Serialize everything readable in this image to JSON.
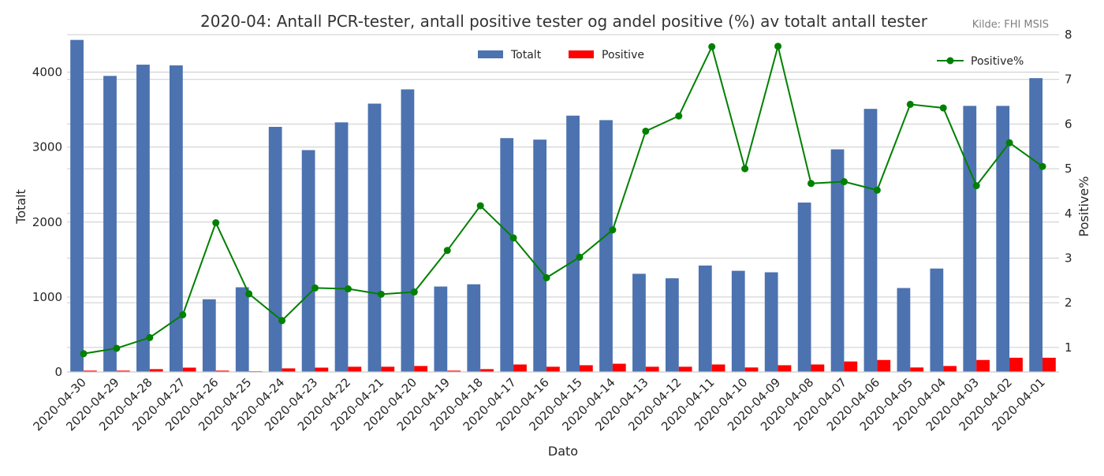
{
  "title": "2020-04: Antall PCR-tester, antall positive tester og andel positive (%) av totalt antall tester",
  "source": "Kilde: FHI MSIS",
  "colors": {
    "total": "#4C72B0",
    "positive": "#FF0000",
    "pct": "#008000",
    "grid": "#CCCCCC"
  },
  "chart_data": {
    "type": "bar",
    "title": "2020-04: Antall PCR-tester, antall positive tester og andel positive (%) av totalt antall tester",
    "xlabel": "Dato",
    "ylabel": "Totalt",
    "y2label": "Positive%",
    "ylim": [
      0,
      4500
    ],
    "y2lim": [
      0.45,
      8.0
    ],
    "yticks": [
      0,
      1000,
      2000,
      3000,
      4000
    ],
    "y2ticks": [
      1,
      2,
      3,
      4,
      5,
      6,
      7,
      8
    ],
    "grid": true,
    "legend": [
      {
        "label": "Totalt",
        "placement": "top-center"
      },
      {
        "label": "Positive",
        "placement": "top-center"
      },
      {
        "label": "Positive%",
        "placement": "top-right"
      }
    ],
    "categories": [
      "2020-04-30",
      "2020-04-29",
      "2020-04-28",
      "2020-04-27",
      "2020-04-26",
      "2020-04-25",
      "2020-04-24",
      "2020-04-23",
      "2020-04-22",
      "2020-04-21",
      "2020-04-20",
      "2020-04-19",
      "2020-04-18",
      "2020-04-17",
      "2020-04-16",
      "2020-04-15",
      "2020-04-14",
      "2020-04-13",
      "2020-04-12",
      "2020-04-11",
      "2020-04-10",
      "2020-04-09",
      "2020-04-08",
      "2020-04-07",
      "2020-04-06",
      "2020-04-05",
      "2020-04-04",
      "2020-04-03",
      "2020-04-02",
      "2020-04-01"
    ],
    "series": [
      {
        "name": "Totalt",
        "type": "bar",
        "axis": "left",
        "values": [
          4430,
          3950,
          4100,
          4090,
          970,
          1130,
          3270,
          2960,
          3330,
          3580,
          3770,
          1140,
          1170,
          3120,
          3100,
          3420,
          3360,
          1310,
          1250,
          1420,
          1350,
          1330,
          2260,
          2970,
          3510,
          1120,
          1380,
          3550,
          3550,
          3920
        ]
      },
      {
        "name": "Positive",
        "type": "bar",
        "axis": "left",
        "values": [
          18,
          18,
          38,
          58,
          18,
          8,
          48,
          58,
          70,
          70,
          80,
          18,
          38,
          100,
          70,
          90,
          110,
          70,
          70,
          100,
          60,
          90,
          100,
          140,
          160,
          60,
          80,
          160,
          190,
          190
        ]
      },
      {
        "name": "Positive%",
        "type": "line",
        "axis": "right",
        "values": [
          0.86,
          0.98,
          1.22,
          1.73,
          3.79,
          2.2,
          1.6,
          2.33,
          2.31,
          2.19,
          2.24,
          3.17,
          4.17,
          3.45,
          2.56,
          3.02,
          3.63,
          5.84,
          6.18,
          7.73,
          5.0,
          7.74,
          4.67,
          4.71,
          4.52,
          6.44,
          6.36,
          4.62,
          5.58,
          5.05
        ]
      }
    ]
  }
}
